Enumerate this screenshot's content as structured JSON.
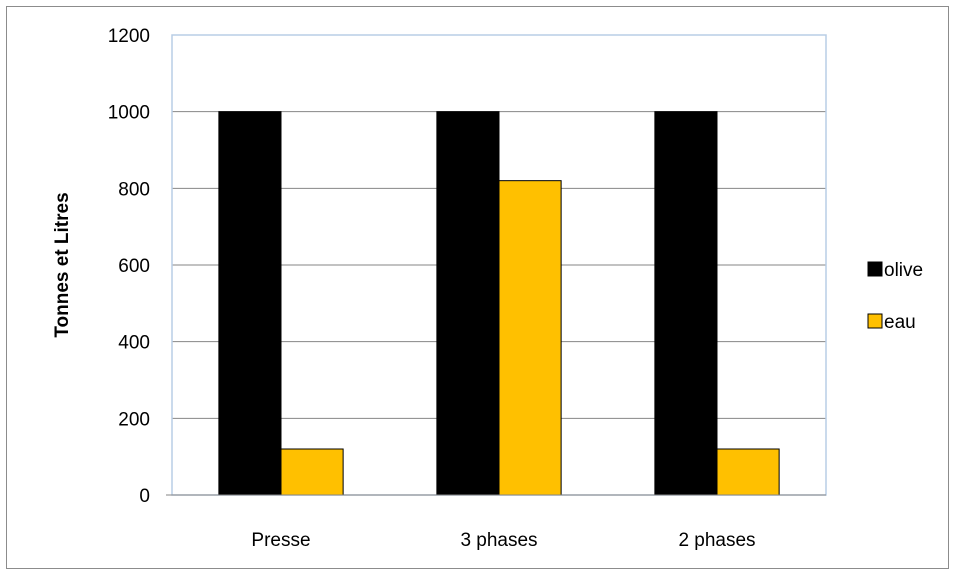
{
  "chart_data": {
    "type": "bar",
    "categories": [
      "Presse",
      "3 phases",
      "2 phases"
    ],
    "series": [
      {
        "name": "olive",
        "values": [
          1000,
          1000,
          1000
        ],
        "color": "#000000"
      },
      {
        "name": "eau",
        "values": [
          120,
          820,
          120
        ],
        "color": "#FFC000"
      }
    ],
    "title": "",
    "xlabel": "",
    "ylabel": "Tonnes et Litres",
    "ylim": [
      0,
      1200
    ],
    "yticks": [
      0,
      200,
      400,
      600,
      800,
      1000,
      1200
    ],
    "ytick_labels": [
      "0",
      "200",
      "400",
      "600",
      "800",
      "1000",
      "1200"
    ],
    "grid": true,
    "legend_position": "right",
    "plot_border_color": "#B9CDE5",
    "gridline_color": "#868686"
  }
}
